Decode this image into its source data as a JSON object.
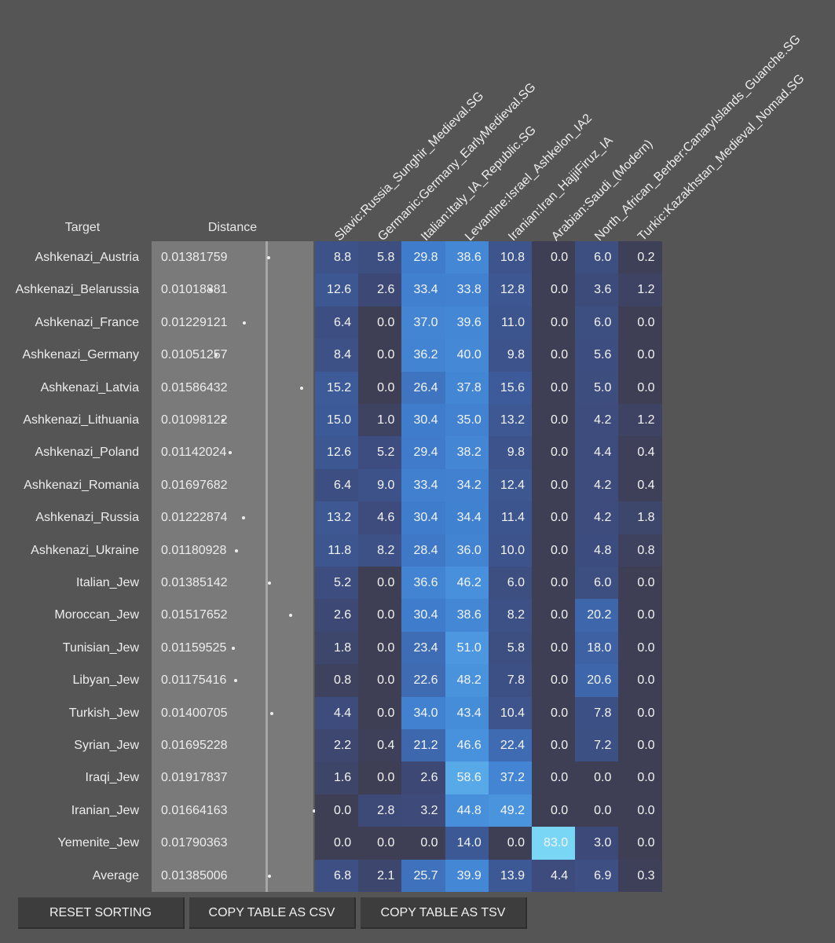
{
  "headers": {
    "target": "Target",
    "distance": "Distance",
    "components": [
      "Slavic:Russia_Sunghir_Medieval.SG",
      "Germanic:Germany_EarlyMedieval.SG",
      "Italian:Italy_IA_Republic.SG",
      "Levantine:Israel_Ashkelon_IA2",
      "Iranian:Iran_HajjiFiruz_IA",
      "Arabian:Saudi_(Modern)",
      "North_African_Berber:CanaryIslands_Guanche.SG",
      "Turkic:Kazakhstan_Medieval_Nomad.SG"
    ]
  },
  "rows": [
    {
      "target": "Ashkenazi_Austria",
      "distance": "0.01381759",
      "values": [
        "8.8",
        "5.8",
        "29.8",
        "38.6",
        "10.8",
        "0.0",
        "6.0",
        "0.2"
      ]
    },
    {
      "target": "Ashkenazi_Belarussia",
      "distance": "0.01018881",
      "values": [
        "12.6",
        "2.6",
        "33.4",
        "33.8",
        "12.8",
        "0.0",
        "3.6",
        "1.2"
      ]
    },
    {
      "target": "Ashkenazi_France",
      "distance": "0.01229121",
      "values": [
        "6.4",
        "0.0",
        "37.0",
        "39.6",
        "11.0",
        "0.0",
        "6.0",
        "0.0"
      ]
    },
    {
      "target": "Ashkenazi_Germany",
      "distance": "0.01051257",
      "values": [
        "8.4",
        "0.0",
        "36.2",
        "40.0",
        "9.8",
        "0.0",
        "5.6",
        "0.0"
      ]
    },
    {
      "target": "Ashkenazi_Latvia",
      "distance": "0.01586432",
      "values": [
        "15.2",
        "0.0",
        "26.4",
        "37.8",
        "15.6",
        "0.0",
        "5.0",
        "0.0"
      ]
    },
    {
      "target": "Ashkenazi_Lithuania",
      "distance": "0.01098122",
      "values": [
        "15.0",
        "1.0",
        "30.4",
        "35.0",
        "13.2",
        "0.0",
        "4.2",
        "1.2"
      ]
    },
    {
      "target": "Ashkenazi_Poland",
      "distance": "0.01142024",
      "values": [
        "12.6",
        "5.2",
        "29.4",
        "38.2",
        "9.8",
        "0.0",
        "4.4",
        "0.4"
      ]
    },
    {
      "target": "Ashkenazi_Romania",
      "distance": "0.01697682",
      "values": [
        "6.4",
        "9.0",
        "33.4",
        "34.2",
        "12.4",
        "0.0",
        "4.2",
        "0.4"
      ]
    },
    {
      "target": "Ashkenazi_Russia",
      "distance": "0.01222874",
      "values": [
        "13.2",
        "4.6",
        "30.4",
        "34.4",
        "11.4",
        "0.0",
        "4.2",
        "1.8"
      ]
    },
    {
      "target": "Ashkenazi_Ukraine",
      "distance": "0.01180928",
      "values": [
        "11.8",
        "8.2",
        "28.4",
        "36.0",
        "10.0",
        "0.0",
        "4.8",
        "0.8"
      ]
    },
    {
      "target": "Italian_Jew",
      "distance": "0.01385142",
      "values": [
        "5.2",
        "0.0",
        "36.6",
        "46.2",
        "6.0",
        "0.0",
        "6.0",
        "0.0"
      ]
    },
    {
      "target": "Moroccan_Jew",
      "distance": "0.01517652",
      "values": [
        "2.6",
        "0.0",
        "30.4",
        "38.6",
        "8.2",
        "0.0",
        "20.2",
        "0.0"
      ]
    },
    {
      "target": "Tunisian_Jew",
      "distance": "0.01159525",
      "values": [
        "1.8",
        "0.0",
        "23.4",
        "51.0",
        "5.8",
        "0.0",
        "18.0",
        "0.0"
      ]
    },
    {
      "target": "Libyan_Jew",
      "distance": "0.01175416",
      "values": [
        "0.8",
        "0.0",
        "22.6",
        "48.2",
        "7.8",
        "0.0",
        "20.6",
        "0.0"
      ]
    },
    {
      "target": "Turkish_Jew",
      "distance": "0.01400705",
      "values": [
        "4.4",
        "0.0",
        "34.0",
        "43.4",
        "10.4",
        "0.0",
        "7.8",
        "0.0"
      ]
    },
    {
      "target": "Syrian_Jew",
      "distance": "0.01695228",
      "values": [
        "2.2",
        "0.4",
        "21.2",
        "46.6",
        "22.4",
        "0.0",
        "7.2",
        "0.0"
      ]
    },
    {
      "target": "Iraqi_Jew",
      "distance": "0.01917837",
      "values": [
        "1.6",
        "0.0",
        "2.6",
        "58.6",
        "37.2",
        "0.0",
        "0.0",
        "0.0"
      ]
    },
    {
      "target": "Iranian_Jew",
      "distance": "0.01664163",
      "values": [
        "0.0",
        "2.8",
        "3.2",
        "44.8",
        "49.2",
        "0.0",
        "0.0",
        "0.0"
      ]
    },
    {
      "target": "Yemenite_Jew",
      "distance": "0.01790363",
      "values": [
        "0.0",
        "0.0",
        "0.0",
        "14.0",
        "0.0",
        "83.0",
        "3.0",
        "0.0"
      ]
    },
    {
      "target": "Average",
      "distance": "0.01385006",
      "values": [
        "6.8",
        "2.1",
        "25.7",
        "39.9",
        "13.9",
        "4.4",
        "6.9",
        "0.3"
      ]
    }
  ],
  "buttons": {
    "reset": "RESET SORTING",
    "csv": "COPY TABLE AS CSV",
    "tsv": "COPY TABLE AS TSV"
  },
  "colors": {
    "background": "#555555",
    "distance_column": "#7a7a7a",
    "cell_zero": "#3e3f55",
    "cell_max": "#7ad6f5"
  }
}
